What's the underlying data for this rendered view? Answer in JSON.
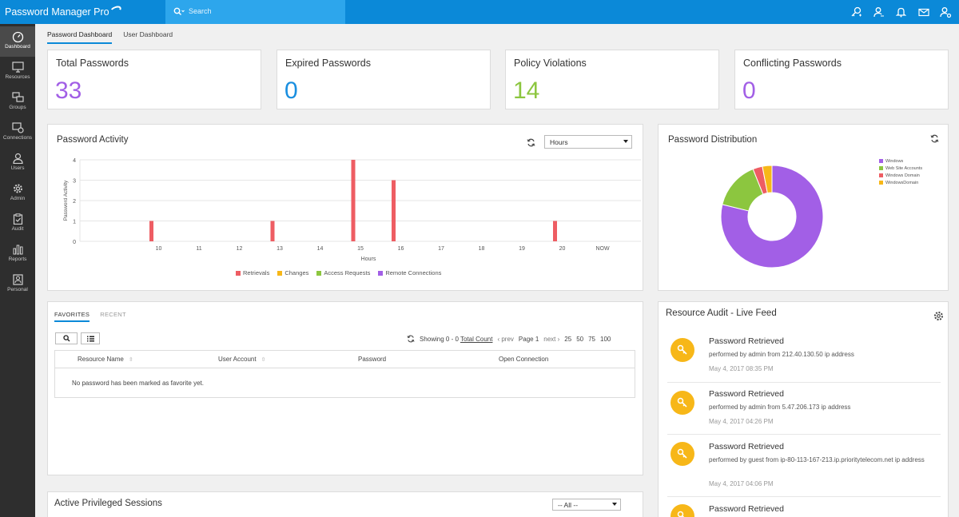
{
  "app": {
    "title": "Password Manager Pro"
  },
  "search": {
    "placeholder": "Search"
  },
  "sidebar": {
    "items": [
      {
        "label": "Dashboard",
        "icon": "dashboard-icon"
      },
      {
        "label": "Resources",
        "icon": "monitor-icon"
      },
      {
        "label": "Groups",
        "icon": "groups-icon"
      },
      {
        "label": "Connections",
        "icon": "connections-icon"
      },
      {
        "label": "Users",
        "icon": "user-icon"
      },
      {
        "label": "Admin",
        "icon": "gear-icon"
      },
      {
        "label": "Audit",
        "icon": "clipboard-icon"
      },
      {
        "label": "Reports",
        "icon": "bar-chart-icon"
      },
      {
        "label": "Personal",
        "icon": "personal-icon"
      }
    ]
  },
  "tabs": {
    "password_dashboard": "Password Dashboard",
    "user_dashboard": "User Dashboard"
  },
  "stats": [
    {
      "label": "Total Passwords",
      "value": "33",
      "color": "#a25fe6"
    },
    {
      "label": "Expired Passwords",
      "value": "0",
      "color": "#1a8fe0"
    },
    {
      "label": "Policy Violations",
      "value": "14",
      "color": "#8cc63f"
    },
    {
      "label": "Conflicting Passwords",
      "value": "0",
      "color": "#a25fe6"
    }
  ],
  "activity": {
    "title": "Password Activity",
    "range": "Hours"
  },
  "distribution": {
    "title": "Password Distribution"
  },
  "chart_data": [
    {
      "type": "bar",
      "title": "Password Activity",
      "xlabel": "Hours",
      "ylabel": "Password Activity",
      "categories": [
        "10",
        "11",
        "12",
        "13",
        "14",
        "15",
        "16",
        "17",
        "18",
        "19",
        "20",
        "NOW"
      ],
      "ylim": [
        0,
        4
      ],
      "yticks": [
        0,
        1,
        2,
        3,
        4
      ],
      "series": [
        {
          "name": "Retrievals",
          "color": "#ee5d63",
          "points": [
            [
              10,
              1
            ],
            [
              13,
              1
            ],
            [
              15,
              4
            ],
            [
              16,
              3
            ],
            [
              20,
              1
            ]
          ]
        },
        {
          "name": "Changes",
          "color": "#f7b718",
          "points": []
        },
        {
          "name": "Access Requests",
          "color": "#8cc63f",
          "points": []
        },
        {
          "name": "Remote Connections",
          "color": "#a25fe6",
          "points": []
        }
      ],
      "legend": "bottom",
      "grid": true
    },
    {
      "type": "pie",
      "title": "Password Distribution",
      "labels": [
        "Windows",
        "Web Site Accounts",
        "Windows Domain",
        "WindowsDomain"
      ],
      "values": [
        26,
        5,
        1,
        1
      ],
      "colors": [
        "#a25fe6",
        "#8cc63f",
        "#ee5d63",
        "#f7b718"
      ],
      "legend": "top-right"
    }
  ],
  "favorites": {
    "tab_favorites": "FAVORITES",
    "tab_recent": "RECENT",
    "showing": "Showing 0 - 0",
    "total_count": "Total Count",
    "prev": "prev",
    "page": "Page 1",
    "next": "next",
    "sizes": [
      "25",
      "50",
      "75",
      "100"
    ],
    "columns": [
      "Resource Name",
      "User Account",
      "Password",
      "Open Connection"
    ],
    "empty": "No password has been marked as favorite yet."
  },
  "sessions": {
    "title": "Active Privileged Sessions",
    "filter": "-- All --"
  },
  "audit": {
    "title": "Resource Audit - Live Feed",
    "items": [
      {
        "title": "Password Retrieved",
        "desc": "performed by admin from 212.40.130.50 ip address",
        "time": "May 4, 2017 08:35 PM"
      },
      {
        "title": "Password Retrieved",
        "desc": "performed by admin from 5.47.206.173 ip address",
        "time": "May 4, 2017 04:26 PM"
      },
      {
        "title": "Password Retrieved",
        "desc": "performed by guest from ip-80-113-167-213.ip.prioritytelecom.net ip address",
        "time": "May 4, 2017 04:06 PM"
      },
      {
        "title": "Password Retrieved"
      }
    ]
  }
}
